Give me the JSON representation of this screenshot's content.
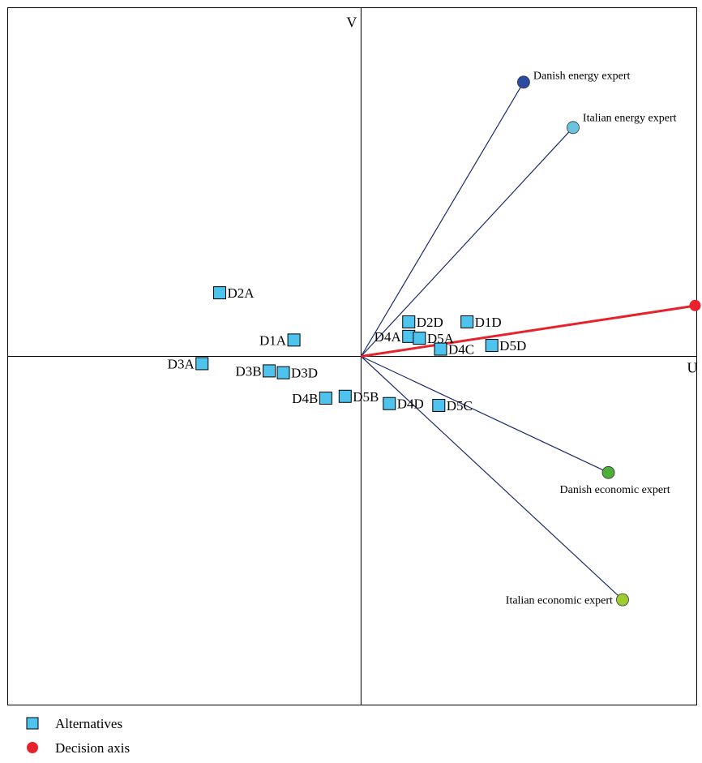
{
  "chart_data": {
    "type": "scatter",
    "subtype": "gaia-biplot",
    "xlabel": "U",
    "ylabel": "V",
    "xlim": [
      -10.0,
      9.5
    ],
    "ylim": [
      -9.6,
      9.6
    ],
    "alternatives": [
      {
        "label": "D2A",
        "x": -4.0,
        "y": 1.75
      },
      {
        "label": "D1A",
        "x": -1.9,
        "y": 0.45
      },
      {
        "label": "D3A",
        "x": -4.5,
        "y": -0.2
      },
      {
        "label": "D3B",
        "x": -2.6,
        "y": -0.4
      },
      {
        "label": "D3D",
        "x": -2.2,
        "y": -0.45
      },
      {
        "label": "D4B",
        "x": -1.0,
        "y": -1.15
      },
      {
        "label": "D5B",
        "x": -0.45,
        "y": -1.1
      },
      {
        "label": "D2D",
        "x": 1.35,
        "y": 0.95
      },
      {
        "label": "D1D",
        "x": 3.0,
        "y": 0.95
      },
      {
        "label": "D4A",
        "x": 1.35,
        "y": 0.55
      },
      {
        "label": "D5A",
        "x": 1.65,
        "y": 0.5
      },
      {
        "label": "D4C",
        "x": 2.25,
        "y": 0.2
      },
      {
        "label": "D5D",
        "x": 3.7,
        "y": 0.3
      },
      {
        "label": "D4D",
        "x": 0.8,
        "y": -1.3
      },
      {
        "label": "D5C",
        "x": 2.2,
        "y": -1.35
      }
    ],
    "criteria": [
      {
        "label": "Danish energy expert",
        "x": 4.6,
        "y": 7.55,
        "color": "#2a4aa6"
      },
      {
        "label": "Italian energy expert",
        "x": 6.0,
        "y": 6.3,
        "color": "#6ac4e0"
      },
      {
        "label": "Danish economic expert",
        "x": 7.0,
        "y": -3.2,
        "color": "#4daf3a"
      },
      {
        "label": "Italian economic expert",
        "x": 7.4,
        "y": -6.7,
        "color": "#9ccc2e"
      }
    ],
    "decision_axis": {
      "x": 9.5,
      "y": 1.4,
      "color": "#e8222c"
    },
    "legend": {
      "position": "bottom-left",
      "items": [
        {
          "label": "Alternatives",
          "marker": "square",
          "color": "#4dc3ee"
        },
        {
          "label": "Decision axis",
          "marker": "circle",
          "color": "#e8222c"
        }
      ]
    },
    "colors": {
      "alternative_fill": "#4dc3ee",
      "criteria_line": "#1c2a6b",
      "axis_line": "#000000"
    },
    "grid": false
  }
}
